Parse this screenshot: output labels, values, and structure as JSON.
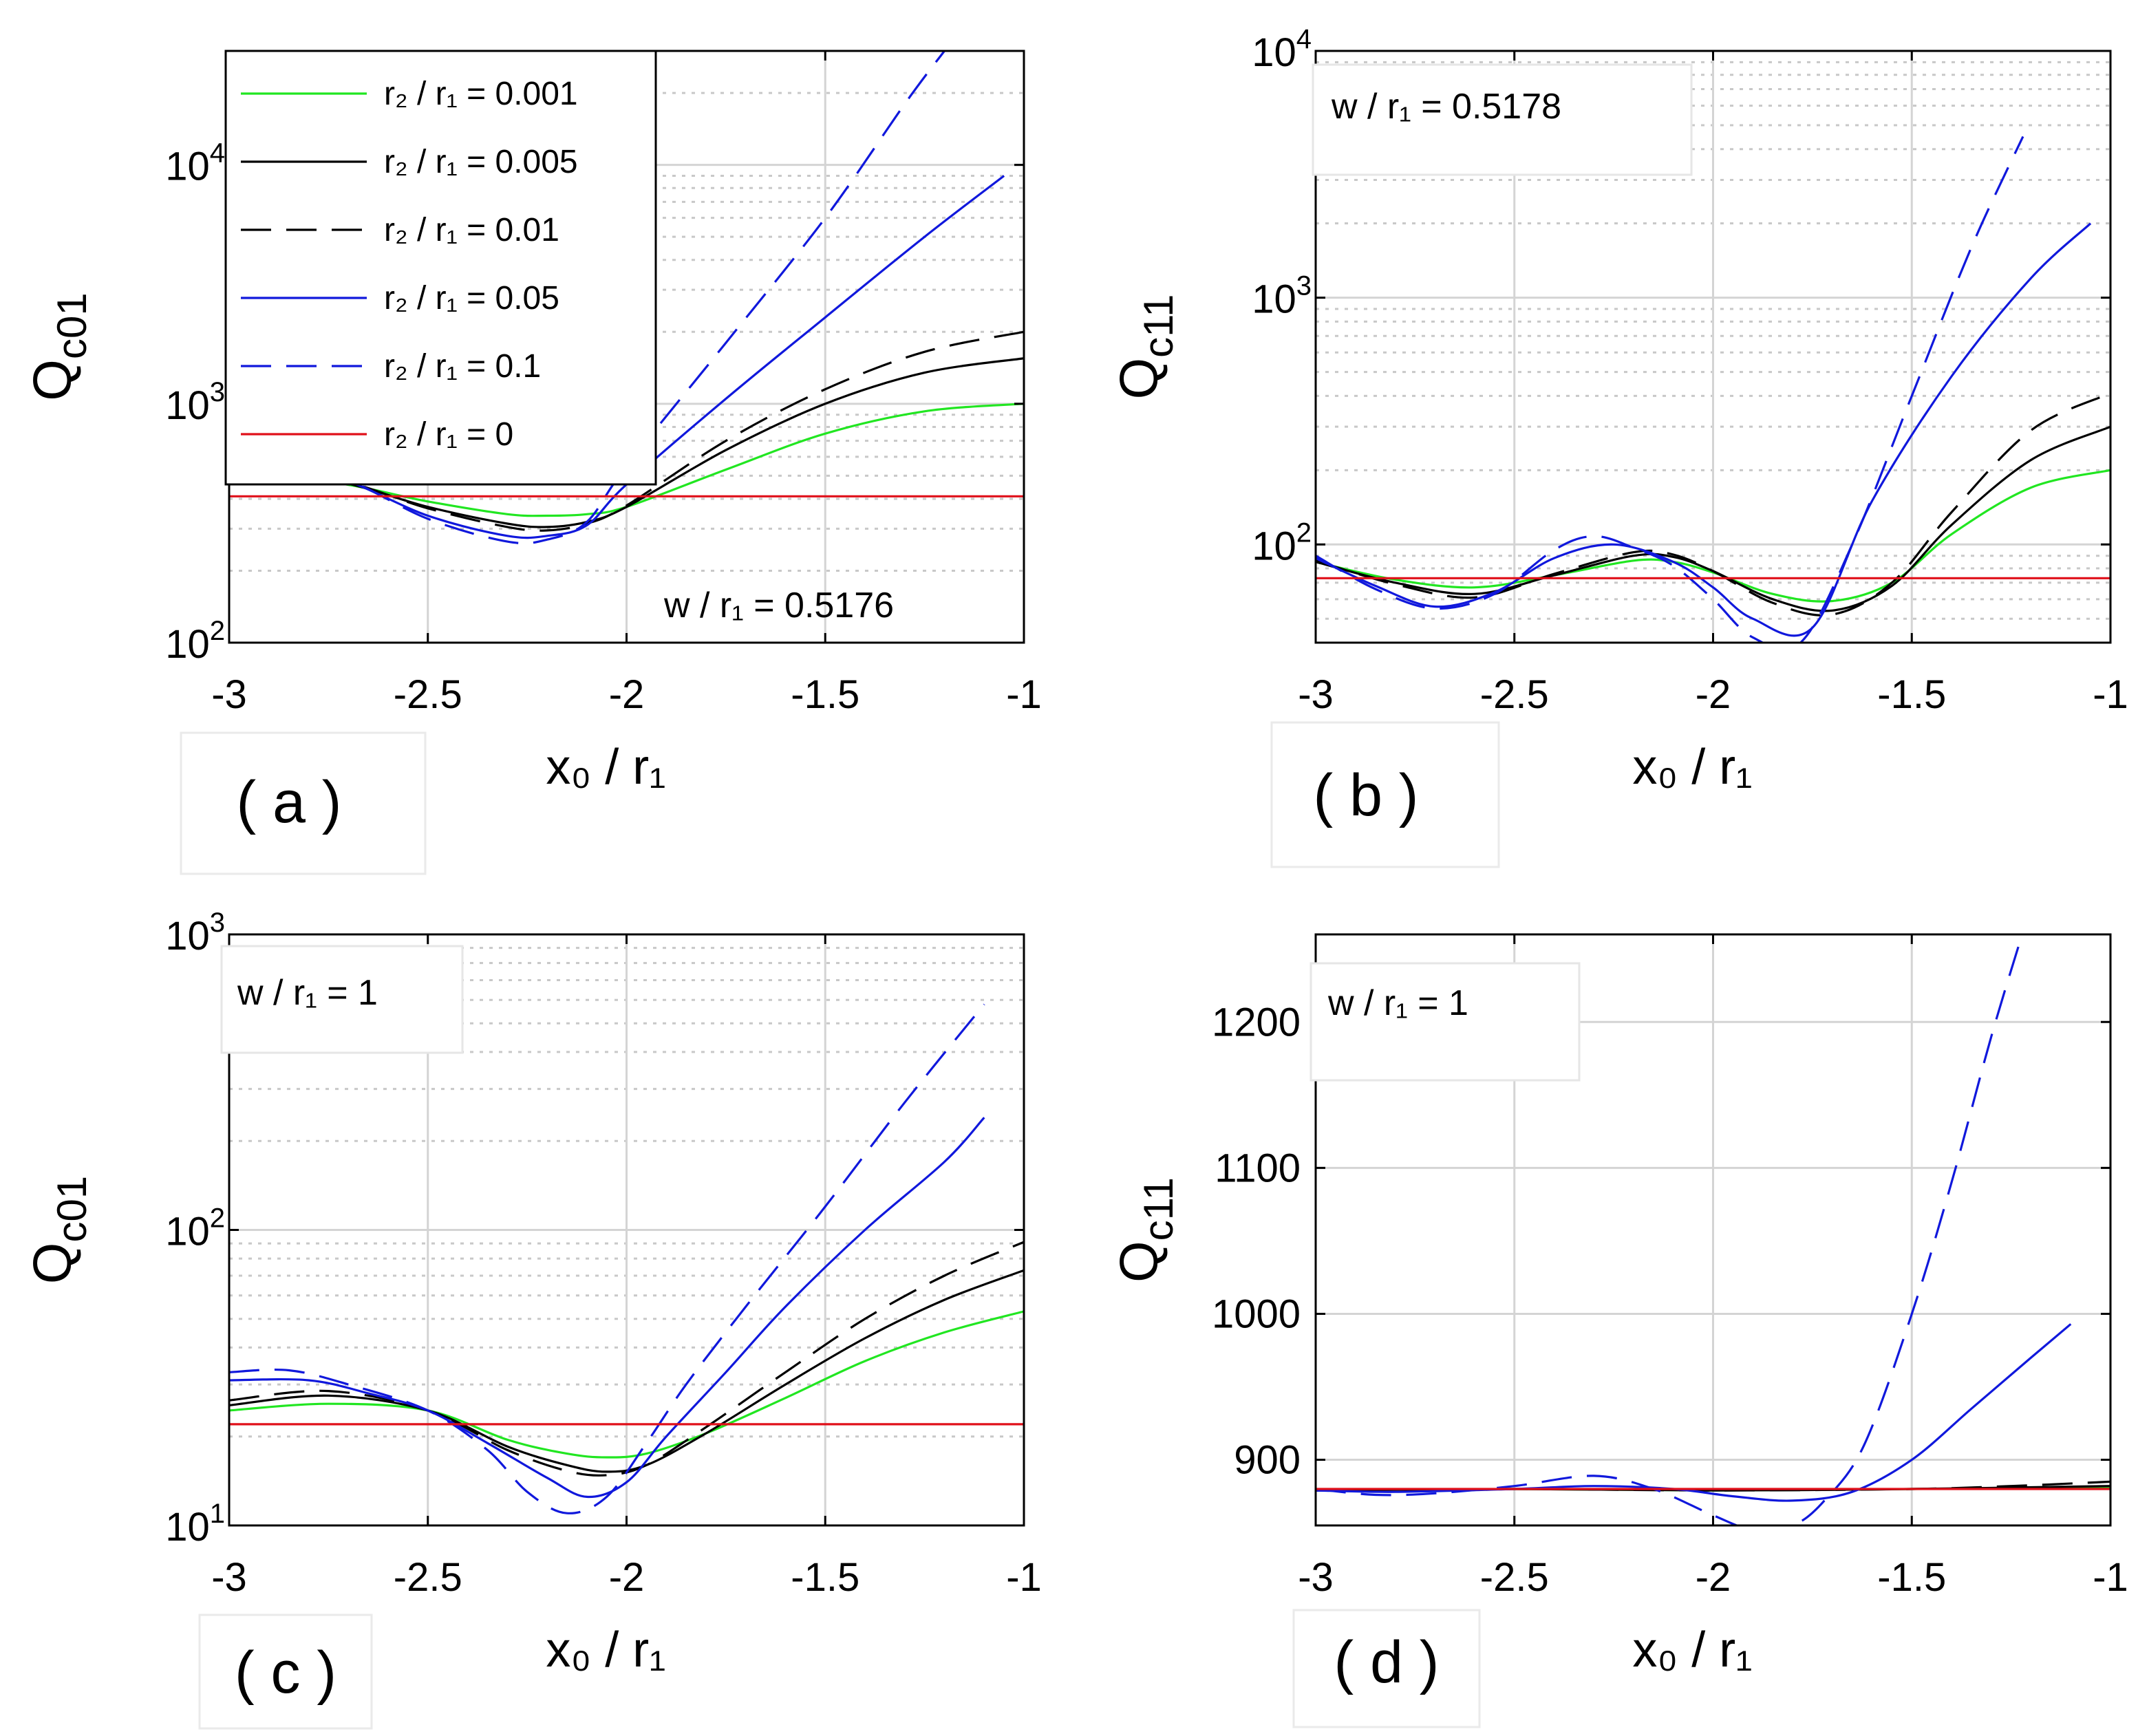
{
  "colors": {
    "green": "#21e621",
    "black": "#000000",
    "blue": "#1018dc",
    "red": "#e0101a",
    "grid": "#d4d4d4",
    "minor_grid": "#c8c8c8"
  },
  "chart_data": [
    {
      "id": "a",
      "type": "line",
      "panel_label": "( a )",
      "annotation": "w / r₁ = 0.5176",
      "xlabel": "x₀ / r₁",
      "ylabel": "Q",
      "ylabel_sub": "c01",
      "yscale": "log",
      "xlim": [
        -3,
        -1
      ],
      "ylim": [
        100,
        30000
      ],
      "xticks": [
        -3,
        -2.5,
        -2,
        -1.5,
        -1
      ],
      "xtick_labels": [
        "-3",
        "-2.5",
        "-2",
        "-1.5",
        "-1"
      ],
      "yticks": [
        100,
        1000,
        10000
      ],
      "ytick_bases": [
        "10",
        "10",
        "10"
      ],
      "ytick_exps": [
        "2",
        "3",
        "4"
      ],
      "legend": {
        "position": "top-left",
        "entries": [
          {
            "series": 0,
            "label": "r₂ / r₁ = 0.001"
          },
          {
            "series": 1,
            "label": "r₂ / r₁ = 0.005"
          },
          {
            "series": 2,
            "label": "r₂ / r₁ = 0.01"
          },
          {
            "series": 3,
            "label": "r₂ / r₁ = 0.05"
          },
          {
            "series": 4,
            "label": "r₂ / r₁ = 0.1"
          },
          {
            "series": 5,
            "label": "r₂ / r₁ = 0"
          }
        ]
      },
      "series": [
        {
          "name": "r₂ / r₁ = 0.001",
          "color": "green",
          "dash": "solid",
          "x": [
            -3,
            -2.75,
            -2.5,
            -2.3,
            -2.2,
            -2.1,
            -2.0,
            -1.75,
            -1.5,
            -1.25,
            -1.0
          ],
          "y": [
            470,
            470,
            390,
            345,
            340,
            345,
            370,
            530,
            750,
            930,
            1000
          ]
        },
        {
          "name": "r₂ / r₁ = 0.005",
          "color": "black",
          "dash": "solid",
          "x": [
            -3,
            -2.75,
            -2.5,
            -2.3,
            -2.2,
            -2.1,
            -2.0,
            -1.75,
            -1.5,
            -1.25,
            -1.0
          ],
          "y": [
            480,
            480,
            370,
            315,
            305,
            320,
            370,
            640,
            1000,
            1350,
            1550
          ]
        },
        {
          "name": "r₂ / r₁ = 0.01",
          "color": "black",
          "dash": "dashed",
          "x": [
            -3,
            -2.75,
            -2.5,
            -2.3,
            -2.2,
            -2.1,
            -2.0,
            -1.75,
            -1.5,
            -1.25,
            -1.0
          ],
          "y": [
            490,
            490,
            365,
            305,
            295,
            315,
            375,
            700,
            1150,
            1650,
            2000
          ]
        },
        {
          "name": "r₂ / r₁ = 0.05",
          "color": "blue",
          "dash": "solid",
          "x": [
            -3,
            -2.75,
            -2.5,
            -2.3,
            -2.2,
            -2.1,
            -2.0,
            -1.75,
            -1.5,
            -1.25,
            -1.05
          ],
          "y": [
            510,
            500,
            340,
            280,
            280,
            310,
            460,
            1050,
            2300,
            5000,
            9000
          ]
        },
        {
          "name": "r₂ / r₁ = 0.1",
          "color": "blue",
          "dash": "dashed",
          "x": [
            -3,
            -2.75,
            -2.5,
            -2.3,
            -2.2,
            -2.1,
            -2.0,
            -1.75,
            -1.5,
            -1.3,
            -1.2
          ],
          "y": [
            520,
            510,
            330,
            265,
            270,
            320,
            550,
            1800,
            6000,
            18000,
            30000
          ]
        },
        {
          "name": "r₂ / r₁ = 0",
          "color": "red",
          "dash": "solid",
          "x": [
            -3,
            -1
          ],
          "y": [
            410,
            410
          ]
        }
      ]
    },
    {
      "id": "b",
      "type": "line",
      "panel_label": "( b )",
      "annotation": "w / r₁ = 0.5178",
      "xlabel": "x₀ / r₁",
      "ylabel": "Q",
      "ylabel_sub": "c11",
      "yscale": "log",
      "xlim": [
        -3,
        -1
      ],
      "ylim": [
        40,
        10000
      ],
      "xticks": [
        -3,
        -2.5,
        -2,
        -1.5,
        -1
      ],
      "xtick_labels": [
        "-3",
        "-2.5",
        "-2",
        "-1.5",
        "-1"
      ],
      "yticks": [
        100,
        1000,
        10000
      ],
      "ytick_bases": [
        "10",
        "10",
        "10"
      ],
      "ytick_exps": [
        "2",
        "3",
        "4"
      ],
      "series": [
        {
          "name": "r₂ / r₁ = 0.001",
          "color": "green",
          "dash": "solid",
          "x": [
            -3,
            -2.8,
            -2.6,
            -2.4,
            -2.2,
            -2.1,
            -2.0,
            -1.85,
            -1.7,
            -1.55,
            -1.4,
            -1.2,
            -1.0
          ],
          "y": [
            85,
            72,
            67,
            75,
            86,
            85,
            77,
            63,
            59,
            70,
            110,
            170,
            200
          ]
        },
        {
          "name": "r₂ / r₁ = 0.005",
          "color": "black",
          "dash": "solid",
          "x": [
            -3,
            -2.8,
            -2.6,
            -2.4,
            -2.2,
            -2.1,
            -2.0,
            -1.85,
            -1.7,
            -1.55,
            -1.4,
            -1.2,
            -1.0
          ],
          "y": [
            85,
            70,
            63,
            75,
            90,
            89,
            78,
            60,
            54,
            68,
            120,
            220,
            300
          ]
        },
        {
          "name": "r₂ / r₁ = 0.01",
          "color": "black",
          "dash": "dashed",
          "x": [
            -3,
            -2.8,
            -2.6,
            -2.4,
            -2.2,
            -2.1,
            -2.0,
            -1.85,
            -1.7,
            -1.55,
            -1.4,
            -1.2,
            -1.0
          ],
          "y": [
            86,
            69,
            61,
            76,
            93,
            91,
            78,
            58,
            52,
            70,
            135,
            290,
            410
          ]
        },
        {
          "name": "r₂ / r₁ = 0.05",
          "color": "blue",
          "dash": "solid",
          "x": [
            -3,
            -2.85,
            -2.7,
            -2.55,
            -2.4,
            -2.25,
            -2.1,
            -2.0,
            -1.9,
            -1.75,
            -1.6,
            -1.4,
            -1.2,
            -1.05
          ],
          "y": [
            88,
            68,
            56,
            64,
            88,
            100,
            85,
            67,
            50,
            46,
            150,
            480,
            1200,
            2000
          ]
        },
        {
          "name": "r₂ / r₁ = 0.1",
          "color": "blue",
          "dash": "dashed",
          "x": [
            -3,
            -2.85,
            -2.7,
            -2.55,
            -2.4,
            -2.3,
            -2.2,
            -2.1,
            -2.0,
            -1.9,
            -1.78,
            -1.65,
            -1.5,
            -1.35,
            -1.22
          ],
          "y": [
            90,
            66,
            55,
            63,
            95,
            108,
            97,
            82,
            60,
            42,
            40,
            100,
            400,
            1600,
            4500
          ]
        },
        {
          "name": "r₂ / r₁ = 0",
          "color": "red",
          "dash": "solid",
          "x": [
            -3,
            -1
          ],
          "y": [
            73,
            73
          ]
        }
      ]
    },
    {
      "id": "c",
      "type": "line",
      "panel_label": "( c )",
      "annotation": "w / r₁ = 1",
      "xlabel": "x₀ / r₁",
      "ylabel": "Q",
      "ylabel_sub": "c01",
      "yscale": "log",
      "xlim": [
        -3,
        -1
      ],
      "ylim": [
        10,
        1000
      ],
      "xticks": [
        -3,
        -2.5,
        -2,
        -1.5,
        -1
      ],
      "xtick_labels": [
        "-3",
        "-2.5",
        "-2",
        "-1.5",
        "-1"
      ],
      "yticks": [
        10,
        100,
        1000
      ],
      "ytick_bases": [
        "10",
        "10",
        "10"
      ],
      "ytick_exps": [
        "1",
        "2",
        "3"
      ],
      "series": [
        {
          "name": "r₂ / r₁ = 0.001",
          "color": "green",
          "dash": "solid",
          "x": [
            -3,
            -2.75,
            -2.5,
            -2.3,
            -2.15,
            -2.05,
            -1.95,
            -1.8,
            -1.6,
            -1.4,
            -1.2,
            -1.0
          ],
          "y": [
            24.5,
            25.8,
            24.5,
            19.5,
            17.5,
            17.0,
            17.5,
            20.5,
            27,
            36,
            45,
            53
          ]
        },
        {
          "name": "r₂ / r₁ = 0.005",
          "color": "black",
          "dash": "solid",
          "x": [
            -3,
            -2.75,
            -2.5,
            -2.3,
            -2.15,
            -2.05,
            -1.95,
            -1.8,
            -1.6,
            -1.4,
            -1.2,
            -1.0
          ],
          "y": [
            25.5,
            27.5,
            24.5,
            18.5,
            16.0,
            15.2,
            16.0,
            20.5,
            30,
            43,
            58,
            73
          ]
        },
        {
          "name": "r₂ / r₁ = 0.01",
          "color": "black",
          "dash": "dashed",
          "x": [
            -3,
            -2.75,
            -2.5,
            -2.3,
            -2.15,
            -2.05,
            -1.95,
            -1.8,
            -1.6,
            -1.4,
            -1.2,
            -1.0
          ],
          "y": [
            26.5,
            28.5,
            24.5,
            18.0,
            15.3,
            14.8,
            16.0,
            21.5,
            33,
            50,
            70,
            91
          ]
        },
        {
          "name": "r₂ / r₁ = 0.05",
          "color": "blue",
          "dash": "solid",
          "x": [
            -3,
            -2.8,
            -2.65,
            -2.5,
            -2.35,
            -2.2,
            -2.1,
            -2.0,
            -1.9,
            -1.75,
            -1.6,
            -1.4,
            -1.2,
            -1.1
          ],
          "y": [
            31,
            31,
            28,
            24.5,
            19,
            14.5,
            12.5,
            14.0,
            20,
            33,
            55,
            100,
            170,
            240
          ]
        },
        {
          "name": "r₂ / r₁ = 0.1",
          "color": "blue",
          "dash": "dashed",
          "x": [
            -3,
            -2.85,
            -2.7,
            -2.5,
            -2.35,
            -2.25,
            -2.15,
            -2.05,
            -1.95,
            -1.85,
            -1.7,
            -1.5,
            -1.3,
            -1.1
          ],
          "y": [
            33,
            33.5,
            30,
            24.5,
            18,
            13,
            11,
            12.5,
            19,
            30,
            55,
            120,
            270,
            580
          ]
        },
        {
          "name": "r₂ / r₁ = 0",
          "color": "red",
          "dash": "solid",
          "x": [
            -3,
            -1
          ],
          "y": [
            22,
            22
          ]
        }
      ]
    },
    {
      "id": "d",
      "type": "line",
      "panel_label": "( d )",
      "annotation": "w / r₁ = 1",
      "xlabel": "x₀ / r₁",
      "ylabel": "Q",
      "ylabel_sub": "c11",
      "yscale": "linear",
      "xlim": [
        -3,
        -1
      ],
      "ylim": [
        855,
        1260
      ],
      "xticks": [
        -3,
        -2.5,
        -2,
        -1.5,
        -1
      ],
      "xtick_labels": [
        "-3",
        "-2.5",
        "-2",
        "-1.5",
        "-1"
      ],
      "yticks": [
        900,
        1000,
        1100,
        1200
      ],
      "ytick_labels": [
        "900",
        "1000",
        "1100",
        "1200"
      ],
      "series": [
        {
          "name": "r₂ / r₁ = 0.001",
          "color": "green",
          "dash": "solid",
          "x": [
            -3,
            -2.5,
            -2,
            -1.5,
            -1.0
          ],
          "y": [
            879,
            880,
            879,
            880,
            881
          ]
        },
        {
          "name": "r₂ / r₁ = 0.005",
          "color": "black",
          "dash": "solid",
          "x": [
            -3,
            -2.5,
            -2,
            -1.5,
            -1.0
          ],
          "y": [
            879,
            880,
            879,
            880,
            882
          ]
        },
        {
          "name": "r₂ / r₁ = 0.01",
          "color": "black",
          "dash": "dashed",
          "x": [
            -3,
            -2.5,
            -2,
            -1.5,
            -1.25,
            -1.0
          ],
          "y": [
            879,
            880,
            879,
            880,
            882,
            885
          ]
        },
        {
          "name": "r₂ / r₁ = 0.05",
          "color": "blue",
          "dash": "solid",
          "x": [
            -3,
            -2.8,
            -2.5,
            -2.3,
            -2.1,
            -1.95,
            -1.8,
            -1.65,
            -1.5,
            -1.35,
            -1.2,
            -1.1
          ],
          "y": [
            879,
            878,
            880,
            882,
            880,
            875,
            872,
            878,
            900,
            935,
            970,
            993
          ]
        },
        {
          "name": "r₂ / r₁ = 0.1",
          "color": "blue",
          "dash": "dashed",
          "x": [
            -3,
            -2.85,
            -2.7,
            -2.5,
            -2.3,
            -2.15,
            -2.0,
            -1.9,
            -1.8,
            -1.72,
            -1.62,
            -1.5,
            -1.4,
            -1.3,
            -1.22
          ],
          "y": [
            880,
            876,
            877,
            882,
            889,
            880,
            862,
            852,
            855,
            872,
            910,
            1000,
            1090,
            1190,
            1262
          ]
        },
        {
          "name": "r₂ / r₁ = 0",
          "color": "red",
          "dash": "solid",
          "x": [
            -3,
            -1
          ],
          "y": [
            880,
            880
          ]
        }
      ]
    }
  ]
}
